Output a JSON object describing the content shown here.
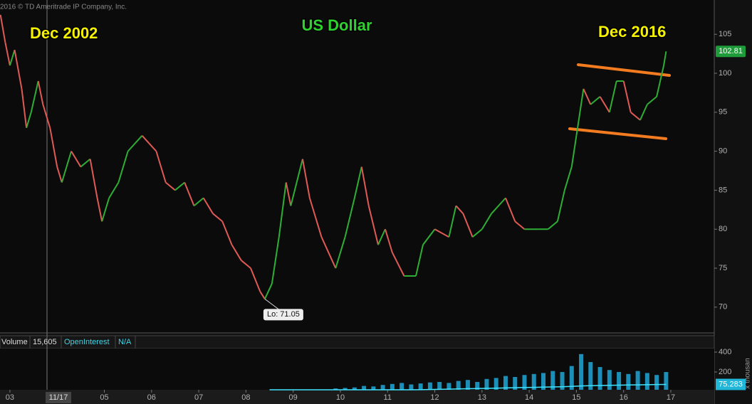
{
  "header": {
    "copyright": "2016 © TD Ameritrade IP Company, Inc."
  },
  "chart_data": [
    {
      "type": "price",
      "title": "US Dollar",
      "annotations": {
        "left": "Dec 2002",
        "right": "Dec 2016",
        "low_label": "Lo: 71.05",
        "last_price": "102.81",
        "cursor_label": "11/17"
      },
      "up_color": "#2fae35",
      "down_color": "#e05a55",
      "x": [
        2002.8,
        2002.9,
        2003.0,
        2003.1,
        2003.25,
        2003.35,
        2003.45,
        2003.6,
        2003.7,
        2003.85,
        2004.0,
        2004.1,
        2004.3,
        2004.5,
        2004.7,
        2004.85,
        2004.95,
        2005.1,
        2005.3,
        2005.5,
        2005.8,
        2005.95,
        2006.1,
        2006.3,
        2006.5,
        2006.7,
        2006.9,
        2007.1,
        2007.3,
        2007.5,
        2007.7,
        2007.9,
        2008.1,
        2008.3,
        2008.4,
        2008.55,
        2008.7,
        2008.85,
        2008.95,
        2009.2,
        2009.35,
        2009.6,
        2009.9,
        2010.1,
        2010.3,
        2010.45,
        2010.6,
        2010.8,
        2010.95,
        2011.1,
        2011.35,
        2011.6,
        2011.75,
        2012.0,
        2012.3,
        2012.45,
        2012.6,
        2012.8,
        2013.0,
        2013.2,
        2013.5,
        2013.7,
        2013.9,
        2014.2,
        2014.4,
        2014.6,
        2014.75,
        2014.9,
        2015.0,
        2015.15,
        2015.3,
        2015.5,
        2015.7,
        2015.85,
        2016.0,
        2016.15,
        2016.35,
        2016.5,
        2016.7,
        2016.85,
        2016.9
      ],
      "values": [
        107.5,
        104,
        101,
        103,
        98,
        93,
        95,
        99,
        96,
        93,
        88,
        86,
        90,
        88,
        89,
        84,
        81,
        84,
        86,
        90,
        92,
        91,
        90,
        86,
        85,
        86,
        83,
        84,
        82,
        81,
        78,
        76,
        75,
        72,
        71.05,
        73,
        79,
        86,
        83,
        89,
        84,
        79,
        75,
        79,
        84,
        88,
        83,
        78,
        80,
        77,
        74,
        74,
        78,
        80,
        79,
        83,
        82,
        79,
        80,
        82,
        84,
        81,
        80,
        80,
        80,
        81,
        85,
        88,
        92,
        98,
        96,
        97,
        95,
        99,
        99,
        95,
        94,
        96,
        97,
        101,
        102.81
      ],
      "ylim": [
        66.7,
        109.4
      ],
      "yticks": [
        70,
        75,
        80,
        85,
        90,
        95,
        100,
        105
      ],
      "xlim": [
        2002.79,
        2017.92
      ],
      "xticks": [
        {
          "value": 2003,
          "label": "03"
        },
        {
          "value": 2005,
          "label": "05"
        },
        {
          "value": 2006,
          "label": "06"
        },
        {
          "value": 2007,
          "label": "07"
        },
        {
          "value": 2008,
          "label": "08"
        },
        {
          "value": 2009,
          "label": "09"
        },
        {
          "value": 2010,
          "label": "10"
        },
        {
          "value": 2011,
          "label": "11"
        },
        {
          "value": 2012,
          "label": "12"
        },
        {
          "value": 2013,
          "label": "13"
        },
        {
          "value": 2014,
          "label": "14"
        },
        {
          "value": 2015,
          "label": "15"
        },
        {
          "value": 2016,
          "label": "16"
        },
        {
          "value": 2017,
          "label": "17"
        }
      ]
    },
    {
      "type": "volume",
      "readout_labels": [
        "Volume",
        "15,605",
        "OpenInterest",
        "N/A"
      ],
      "unit_label": "x thousan",
      "x": [
        2008.5,
        2008.7,
        2008.9,
        2009.1,
        2009.3,
        2009.5,
        2009.7,
        2009.9,
        2010.1,
        2010.3,
        2010.5,
        2010.7,
        2010.9,
        2011.1,
        2011.3,
        2011.5,
        2011.7,
        2011.9,
        2012.1,
        2012.3,
        2012.5,
        2012.7,
        2012.9,
        2013.1,
        2013.3,
        2013.5,
        2013.7,
        2013.9,
        2014.1,
        2014.3,
        2014.5,
        2014.7,
        2014.9,
        2015.1,
        2015.3,
        2015.5,
        2015.7,
        2015.9,
        2016.1,
        2016.3,
        2016.5,
        2016.7,
        2016.9
      ],
      "series": [
        {
          "name": "Volume",
          "color": "#1c8fb8",
          "values": [
            5,
            8,
            10,
            12,
            15,
            20,
            25,
            35,
            40,
            45,
            60,
            55,
            70,
            80,
            90,
            75,
            85,
            95,
            100,
            90,
            110,
            120,
            100,
            130,
            140,
            160,
            150,
            170,
            180,
            190,
            210,
            200,
            260,
            380,
            300,
            250,
            220,
            200,
            180,
            210,
            190,
            170,
            200
          ]
        },
        {
          "name": "OpenInterest",
          "color": "#3fe3ff",
          "values": [
            5,
            5,
            6,
            6,
            7,
            7,
            8,
            9,
            10,
            11,
            12,
            14,
            15,
            17,
            18,
            20,
            22,
            24,
            26,
            28,
            30,
            32,
            34,
            36,
            38,
            40,
            42,
            44,
            46,
            48,
            50,
            52,
            55,
            60,
            62,
            64,
            66,
            68,
            70,
            71,
            72,
            74,
            75.283
          ]
        }
      ],
      "last_value_label": "75.283",
      "ylim": [
        0,
        436
      ],
      "yticks": [
        200,
        400
      ],
      "xlim": [
        2002.79,
        2017.92
      ]
    }
  ]
}
